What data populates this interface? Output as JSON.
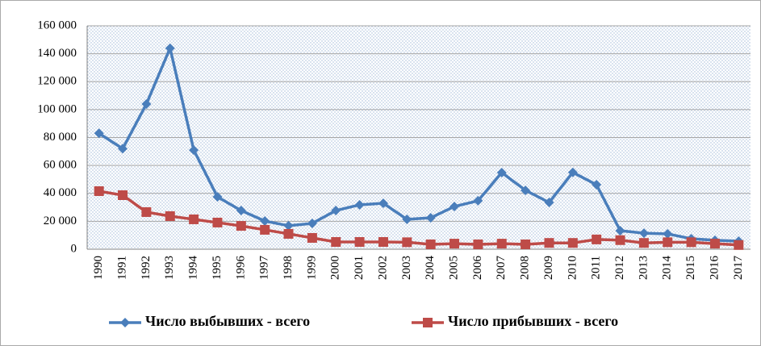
{
  "chart_data": {
    "type": "line",
    "categories": [
      "1990",
      "1991",
      "1992",
      "1993",
      "1994",
      "1995",
      "1996",
      "1997",
      "1998",
      "1999",
      "2000",
      "2001",
      "2002",
      "2003",
      "2004",
      "2005",
      "2006",
      "2007",
      "2008",
      "2009",
      "2010",
      "2011",
      "2012",
      "2013",
      "2014",
      "2015",
      "2016",
      "2017"
    ],
    "series": [
      {
        "name": "Число выбывших - всего",
        "color": "#4a7ebb",
        "marker": "diamond",
        "values": [
          83000,
          72000,
          104000,
          144000,
          71000,
          37500,
          27700,
          20200,
          16800,
          18500,
          27700,
          31800,
          32900,
          21400,
          22500,
          30600,
          34700,
          54900,
          42200,
          33500,
          55000,
          46200,
          13300,
          11500,
          11000,
          7500,
          6400,
          5800
        ]
      },
      {
        "name": "Число прибывших - всего",
        "color": "#be4b48",
        "marker": "square",
        "values": [
          41600,
          38700,
          26600,
          23700,
          21400,
          19100,
          16700,
          13900,
          11000,
          8100,
          5200,
          5200,
          5200,
          5000,
          3500,
          4000,
          3500,
          4000,
          3500,
          4500,
          4500,
          7000,
          6500,
          4500,
          5000,
          5000,
          4000,
          3000
        ]
      }
    ],
    "ylim": [
      0,
      160000
    ],
    "yticks": [
      0,
      {
        "value": 20000,
        "label": "20 000"
      },
      {
        "value": 40000,
        "label": "40 000"
      },
      {
        "value": 60000,
        "label": "60 000"
      },
      {
        "value": 80000,
        "label": "80 000"
      },
      {
        "value": 100000,
        "label": "100 000"
      },
      {
        "value": 120000,
        "label": "120 000"
      },
      {
        "value": 140000,
        "label": "140 000"
      },
      {
        "value": 160000,
        "label": "160 000"
      }
    ],
    "grid": true,
    "legend": "bottom"
  }
}
